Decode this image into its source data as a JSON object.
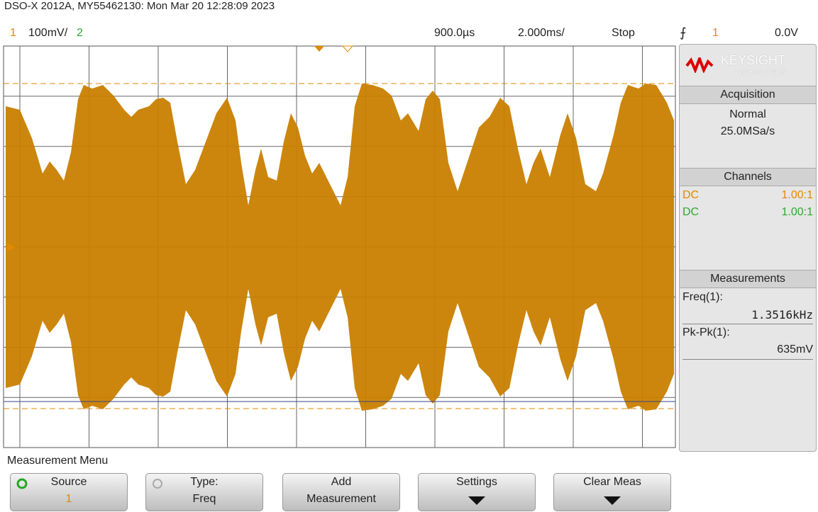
{
  "header": {
    "title": "DSO-X 2012A, MY55462130: Mon Mar 20 12:28:09 2023"
  },
  "status_bar": {
    "channel1": "1",
    "ch1_scale": "100mV/",
    "channel2": "2",
    "delay": "900.0µs",
    "timebase": "2.000ms/",
    "run_state": "Stop",
    "trigger_source": "1",
    "trigger_level": "0.0V"
  },
  "side_panel": {
    "brand": "KEYSIGHT",
    "brand_sub": "TECHNOLOGIES",
    "acquisition": {
      "title": "Acquisition",
      "mode": "Normal",
      "sample_rate": "25.0MSa/s"
    },
    "channels": {
      "title": "Channels",
      "rows": [
        [
          "DC",
          "1.00:1"
        ],
        [
          "DC",
          "1.00:1"
        ]
      ]
    },
    "measurements": {
      "title": "Measurements",
      "items": [
        {
          "label": "Freq(1):",
          "value": "1.3516kHz"
        },
        {
          "label": "Pk-Pk(1):",
          "value": "635mV"
        }
      ]
    }
  },
  "menu": {
    "title": "Measurement Menu",
    "softkeys": [
      {
        "label": "Source",
        "sub": "1"
      },
      {
        "label": "Type:",
        "sub": "Freq"
      },
      {
        "label": "Add",
        "sub": "Measurement"
      },
      {
        "label": "Settings"
      },
      {
        "label": "Clear Meas"
      }
    ]
  }
}
